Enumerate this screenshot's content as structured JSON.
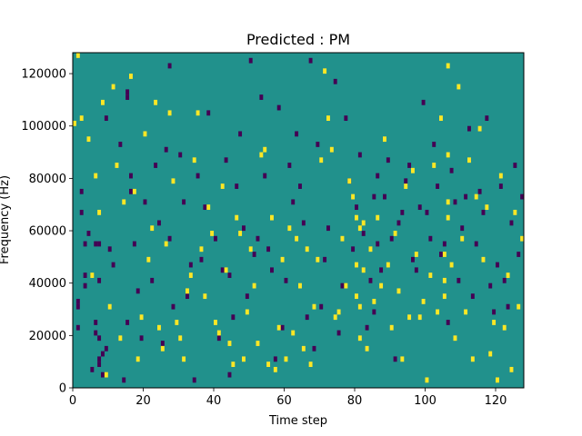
{
  "chart_data": {
    "type": "heatmap",
    "title": "Predicted : PM",
    "xlabel": "Time step",
    "ylabel": "Frequency (Hz)",
    "xlim": [
      0,
      128
    ],
    "ylim": [
      0,
      128000
    ],
    "x_ticks": [
      0,
      20,
      40,
      60,
      80,
      100,
      120
    ],
    "x_tick_labels": [
      "0",
      "20",
      "40",
      "60",
      "80",
      "100",
      "120"
    ],
    "y_ticks": [
      0,
      20000,
      40000,
      60000,
      80000,
      100000,
      120000
    ],
    "y_tick_labels": [
      "0",
      "20000",
      "40000",
      "60000",
      "80000",
      "100000",
      "120000"
    ],
    "n_time_steps": 128,
    "n_frequency_bins": 64,
    "colormap": "viridis",
    "colors": {
      "background": "#21918c",
      "low": "#440154",
      "high": "#fde725"
    },
    "grid": false,
    "legend": "none",
    "low_cells": [
      [
        1,
        16
      ],
      [
        1,
        11
      ],
      [
        1,
        15
      ],
      [
        2,
        33
      ],
      [
        2,
        37
      ],
      [
        3,
        21
      ],
      [
        3,
        27
      ],
      [
        3,
        19
      ],
      [
        4,
        29
      ],
      [
        5,
        3
      ],
      [
        6,
        27
      ],
      [
        6,
        12
      ],
      [
        6,
        10
      ],
      [
        7,
        4
      ],
      [
        7,
        5
      ],
      [
        7,
        9
      ],
      [
        7,
        20
      ],
      [
        7,
        27
      ],
      [
        8,
        6
      ],
      [
        8,
        2
      ],
      [
        9,
        7
      ],
      [
        9,
        51
      ],
      [
        10,
        26
      ],
      [
        11,
        23
      ],
      [
        13,
        46
      ],
      [
        14,
        1
      ],
      [
        15,
        56
      ],
      [
        15,
        12
      ],
      [
        15,
        55
      ],
      [
        16,
        37
      ],
      [
        16,
        40
      ],
      [
        17,
        27
      ],
      [
        18,
        18
      ],
      [
        19,
        9
      ],
      [
        20,
        35
      ],
      [
        22,
        20
      ],
      [
        23,
        42
      ],
      [
        24,
        31
      ],
      [
        25,
        8
      ],
      [
        26,
        45
      ],
      [
        27,
        28
      ],
      [
        27,
        61
      ],
      [
        28,
        15
      ],
      [
        30,
        44
      ],
      [
        31,
        35
      ],
      [
        32,
        17
      ],
      [
        33,
        23
      ],
      [
        34,
        1
      ],
      [
        35,
        40
      ],
      [
        36,
        24
      ],
      [
        37,
        34
      ],
      [
        38,
        52
      ],
      [
        40,
        28
      ],
      [
        41,
        9
      ],
      [
        42,
        22
      ],
      [
        43,
        43
      ],
      [
        44,
        2
      ],
      [
        44,
        21
      ],
      [
        45,
        13
      ],
      [
        46,
        38
      ],
      [
        47,
        48
      ],
      [
        48,
        30
      ],
      [
        49,
        17
      ],
      [
        50,
        62
      ],
      [
        51,
        25
      ],
      [
        52,
        28
      ],
      [
        53,
        55
      ],
      [
        54,
        40
      ],
      [
        55,
        26
      ],
      [
        56,
        22
      ],
      [
        57,
        5
      ],
      [
        58,
        53
      ],
      [
        59,
        11
      ],
      [
        60,
        20
      ],
      [
        61,
        42
      ],
      [
        62,
        35
      ],
      [
        63,
        48
      ],
      [
        64,
        38
      ],
      [
        65,
        31
      ],
      [
        66,
        13
      ],
      [
        67,
        62
      ],
      [
        68,
        7
      ],
      [
        69,
        46
      ],
      [
        70,
        15
      ],
      [
        71,
        24
      ],
      [
        72,
        30
      ],
      [
        74,
        58
      ],
      [
        75,
        10
      ],
      [
        76,
        19
      ],
      [
        77,
        51
      ],
      [
        78,
        39
      ],
      [
        79,
        26
      ],
      [
        80,
        34
      ],
      [
        81,
        44
      ],
      [
        82,
        29
      ],
      [
        83,
        11
      ],
      [
        84,
        20
      ],
      [
        85,
        14
      ],
      [
        85,
        36
      ],
      [
        86,
        27
      ],
      [
        86,
        40
      ],
      [
        87,
        22
      ],
      [
        88,
        36
      ],
      [
        89,
        43
      ],
      [
        90,
        28
      ],
      [
        91,
        5
      ],
      [
        92,
        31
      ],
      [
        93,
        33
      ],
      [
        94,
        39
      ],
      [
        95,
        42
      ],
      [
        96,
        24
      ],
      [
        97,
        22
      ],
      [
        98,
        34
      ],
      [
        99,
        54
      ],
      [
        100,
        33
      ],
      [
        101,
        28
      ],
      [
        102,
        46
      ],
      [
        103,
        38
      ],
      [
        104,
        25
      ],
      [
        105,
        27
      ],
      [
        106,
        12
      ],
      [
        107,
        41
      ],
      [
        108,
        35
      ],
      [
        109,
        20
      ],
      [
        110,
        30
      ],
      [
        111,
        36
      ],
      [
        112,
        49
      ],
      [
        113,
        17
      ],
      [
        114,
        27
      ],
      [
        115,
        37
      ],
      [
        116,
        33
      ],
      [
        117,
        51
      ],
      [
        118,
        19
      ],
      [
        119,
        14
      ],
      [
        120,
        23
      ],
      [
        121,
        38
      ],
      [
        122,
        20
      ],
      [
        123,
        15
      ],
      [
        124,
        31
      ],
      [
        125,
        42
      ],
      [
        126,
        25
      ],
      [
        127,
        36
      ]
    ],
    "high_cells": [
      [
        0,
        50
      ],
      [
        1,
        63
      ],
      [
        2,
        51
      ],
      [
        4,
        47
      ],
      [
        5,
        21
      ],
      [
        6,
        40
      ],
      [
        7,
        33
      ],
      [
        8,
        54
      ],
      [
        9,
        2
      ],
      [
        10,
        15
      ],
      [
        11,
        57
      ],
      [
        12,
        42
      ],
      [
        13,
        9
      ],
      [
        14,
        35
      ],
      [
        16,
        59
      ],
      [
        17,
        37
      ],
      [
        18,
        5
      ],
      [
        19,
        13
      ],
      [
        20,
        48
      ],
      [
        21,
        24
      ],
      [
        22,
        30
      ],
      [
        23,
        54
      ],
      [
        24,
        11
      ],
      [
        25,
        7
      ],
      [
        26,
        27
      ],
      [
        27,
        52
      ],
      [
        28,
        39
      ],
      [
        29,
        12
      ],
      [
        30,
        9
      ],
      [
        31,
        5
      ],
      [
        32,
        18
      ],
      [
        33,
        21
      ],
      [
        34,
        43
      ],
      [
        35,
        52
      ],
      [
        36,
        26
      ],
      [
        37,
        17
      ],
      [
        38,
        34
      ],
      [
        39,
        29
      ],
      [
        40,
        12
      ],
      [
        41,
        10
      ],
      [
        42,
        38
      ],
      [
        43,
        22
      ],
      [
        44,
        8
      ],
      [
        45,
        4
      ],
      [
        46,
        32
      ],
      [
        47,
        29
      ],
      [
        48,
        5
      ],
      [
        49,
        14
      ],
      [
        50,
        26
      ],
      [
        51,
        19
      ],
      [
        52,
        8
      ],
      [
        53,
        44
      ],
      [
        54,
        45
      ],
      [
        55,
        4
      ],
      [
        56,
        32
      ],
      [
        57,
        3
      ],
      [
        58,
        11
      ],
      [
        59,
        24
      ],
      [
        60,
        5
      ],
      [
        61,
        30
      ],
      [
        62,
        10
      ],
      [
        63,
        28
      ],
      [
        64,
        19
      ],
      [
        65,
        7
      ],
      [
        66,
        26
      ],
      [
        67,
        4
      ],
      [
        68,
        15
      ],
      [
        69,
        24
      ],
      [
        70,
        43
      ],
      [
        71,
        60
      ],
      [
        72,
        51
      ],
      [
        73,
        45
      ],
      [
        74,
        13
      ],
      [
        75,
        14
      ],
      [
        76,
        28
      ],
      [
        77,
        19
      ],
      [
        78,
        39
      ],
      [
        79,
        36
      ],
      [
        80,
        32
      ],
      [
        80,
        17
      ],
      [
        80,
        23
      ],
      [
        81,
        15
      ],
      [
        81,
        9
      ],
      [
        81,
        30
      ],
      [
        82,
        22
      ],
      [
        82,
        31
      ],
      [
        83,
        7
      ],
      [
        84,
        26
      ],
      [
        85,
        16
      ],
      [
        86,
        32
      ],
      [
        87,
        19
      ],
      [
        88,
        47
      ],
      [
        89,
        23
      ],
      [
        90,
        11
      ],
      [
        91,
        29
      ],
      [
        92,
        18
      ],
      [
        93,
        5
      ],
      [
        94,
        38
      ],
      [
        95,
        13
      ],
      [
        96,
        41
      ],
      [
        97,
        25
      ],
      [
        98,
        13
      ],
      [
        99,
        16
      ],
      [
        100,
        1
      ],
      [
        101,
        21
      ],
      [
        102,
        42
      ],
      [
        103,
        14
      ],
      [
        104,
        51
      ],
      [
        105,
        17
      ],
      [
        105,
        20
      ],
      [
        105,
        25
      ],
      [
        106,
        32
      ],
      [
        106,
        35
      ],
      [
        106,
        44
      ],
      [
        106,
        61
      ],
      [
        107,
        23
      ],
      [
        108,
        9
      ],
      [
        109,
        57
      ],
      [
        110,
        28
      ],
      [
        111,
        14
      ],
      [
        112,
        43
      ],
      [
        113,
        5
      ],
      [
        114,
        36
      ],
      [
        115,
        49
      ],
      [
        116,
        24
      ],
      [
        117,
        34
      ],
      [
        118,
        6
      ],
      [
        119,
        12
      ],
      [
        120,
        1
      ],
      [
        121,
        40
      ],
      [
        122,
        11
      ],
      [
        123,
        21
      ],
      [
        124,
        3
      ],
      [
        125,
        33
      ],
      [
        126,
        15
      ],
      [
        127,
        28
      ]
    ]
  }
}
